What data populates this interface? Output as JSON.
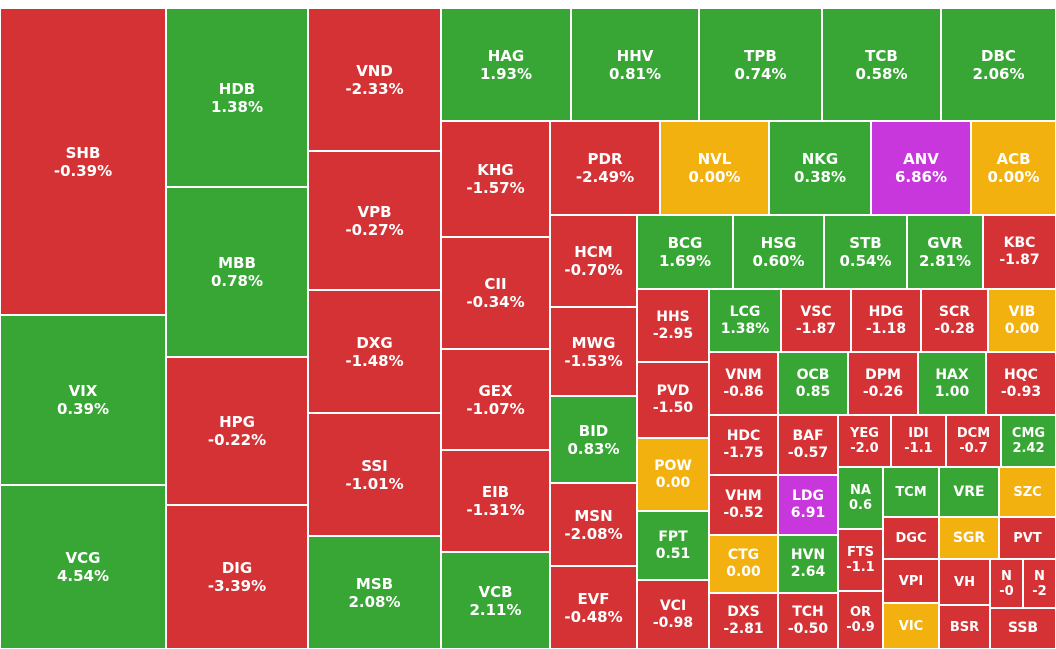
{
  "chart_data": {
    "type": "treemap",
    "colors": {
      "down": "#d43235",
      "up": "#38a635",
      "ref": "#f3b10f",
      "ceiling": "#c737dc"
    },
    "tiles": [
      {
        "symbol": "SHB",
        "change": "-0.39%",
        "status": "down"
      },
      {
        "symbol": "VIX",
        "change": "0.39%",
        "status": "up"
      },
      {
        "symbol": "VCG",
        "change": "4.54%",
        "status": "up"
      },
      {
        "symbol": "HDB",
        "change": "1.38%",
        "status": "up"
      },
      {
        "symbol": "MBB",
        "change": "0.78%",
        "status": "up"
      },
      {
        "symbol": "HPG",
        "change": "-0.22%",
        "status": "down"
      },
      {
        "symbol": "DIG",
        "change": "-3.39%",
        "status": "down"
      },
      {
        "symbol": "VND",
        "change": "-2.33%",
        "status": "down"
      },
      {
        "symbol": "VPB",
        "change": "-0.27%",
        "status": "down"
      },
      {
        "symbol": "DXG",
        "change": "-1.48%",
        "status": "down"
      },
      {
        "symbol": "SSI",
        "change": "-1.01%",
        "status": "down"
      },
      {
        "symbol": "MSB",
        "change": "2.08%",
        "status": "up"
      },
      {
        "symbol": "HAG",
        "change": "1.93%",
        "status": "up"
      },
      {
        "symbol": "HHV",
        "change": "0.81%",
        "status": "up"
      },
      {
        "symbol": "TPB",
        "change": "0.74%",
        "status": "up"
      },
      {
        "symbol": "TCB",
        "change": "0.58%",
        "status": "up"
      },
      {
        "symbol": "DBC",
        "change": "2.06%",
        "status": "up"
      },
      {
        "symbol": "KHG",
        "change": "-1.57%",
        "status": "down"
      },
      {
        "symbol": "CII",
        "change": "-0.34%",
        "status": "down"
      },
      {
        "symbol": "GEX",
        "change": "-1.07%",
        "status": "down"
      },
      {
        "symbol": "EIB",
        "change": "-1.31%",
        "status": "down"
      },
      {
        "symbol": "VCB",
        "change": "2.11%",
        "status": "up"
      },
      {
        "symbol": "PDR",
        "change": "-2.49%",
        "status": "down"
      },
      {
        "symbol": "NVL",
        "change": "0.00%",
        "status": "ref"
      },
      {
        "symbol": "NKG",
        "change": "0.38%",
        "status": "up"
      },
      {
        "symbol": "ANV",
        "change": "6.86%",
        "status": "ceiling"
      },
      {
        "symbol": "ACB",
        "change": "0.00%",
        "status": "ref"
      },
      {
        "symbol": "HCM",
        "change": "-0.70%",
        "status": "down"
      },
      {
        "symbol": "MWG",
        "change": "-1.53%",
        "status": "down"
      },
      {
        "symbol": "BID",
        "change": "0.83%",
        "status": "up"
      },
      {
        "symbol": "MSN",
        "change": "-2.08%",
        "status": "down"
      },
      {
        "symbol": "EVF",
        "change": "-0.48%",
        "status": "down"
      },
      {
        "symbol": "BCG",
        "change": "1.69%",
        "status": "up"
      },
      {
        "symbol": "HSG",
        "change": "0.60%",
        "status": "up"
      },
      {
        "symbol": "STB",
        "change": "0.54%",
        "status": "up"
      },
      {
        "symbol": "GVR",
        "change": "2.81%",
        "status": "up"
      },
      {
        "symbol": "KBC",
        "change": "-1.87",
        "status": "down"
      },
      {
        "symbol": "HHS",
        "change": "-2.95",
        "status": "down"
      },
      {
        "symbol": "PVD",
        "change": "-1.50",
        "status": "down"
      },
      {
        "symbol": "POW",
        "change": "0.00",
        "status": "ref"
      },
      {
        "symbol": "FPT",
        "change": "0.51",
        "status": "up"
      },
      {
        "symbol": "VCI",
        "change": "-0.98",
        "status": "down"
      },
      {
        "symbol": "LCG",
        "change": "1.38%",
        "status": "up"
      },
      {
        "symbol": "VSC",
        "change": "-1.87",
        "status": "down"
      },
      {
        "symbol": "HDG",
        "change": "-1.18",
        "status": "down"
      },
      {
        "symbol": "SCR",
        "change": "-0.28",
        "status": "down"
      },
      {
        "symbol": "VIB",
        "change": "0.00",
        "status": "ref"
      },
      {
        "symbol": "VNM",
        "change": "-0.86",
        "status": "down"
      },
      {
        "symbol": "OCB",
        "change": "0.85",
        "status": "up"
      },
      {
        "symbol": "DPM",
        "change": "-0.26",
        "status": "down"
      },
      {
        "symbol": "HAX",
        "change": "1.00",
        "status": "up"
      },
      {
        "symbol": "HQC",
        "change": "-0.93",
        "status": "down"
      },
      {
        "symbol": "HDC",
        "change": "-1.75",
        "status": "down"
      },
      {
        "symbol": "BAF",
        "change": "-0.57",
        "status": "down"
      },
      {
        "symbol": "YEG",
        "change": "-2.0",
        "status": "down"
      },
      {
        "symbol": "IDI",
        "change": "-1.1",
        "status": "down"
      },
      {
        "symbol": "DCM",
        "change": "-0.7",
        "status": "down"
      },
      {
        "symbol": "CMG",
        "change": "2.42",
        "status": "up"
      },
      {
        "symbol": "VHM",
        "change": "-0.52",
        "status": "down"
      },
      {
        "symbol": "LDG",
        "change": "6.91",
        "status": "ceiling"
      },
      {
        "symbol": "NA",
        "change": "0.6",
        "status": "up"
      },
      {
        "symbol": "TCM",
        "change": "",
        "status": "up"
      },
      {
        "symbol": "VRE",
        "change": "",
        "status": "up"
      },
      {
        "symbol": "SZC",
        "change": "",
        "status": "ref"
      },
      {
        "symbol": "DGC",
        "change": "",
        "status": "down"
      },
      {
        "symbol": "SGR",
        "change": "",
        "status": "ref"
      },
      {
        "symbol": "PVT",
        "change": "",
        "status": "down"
      },
      {
        "symbol": "CTG",
        "change": "0.00",
        "status": "ref"
      },
      {
        "symbol": "HVN",
        "change": "2.64",
        "status": "up"
      },
      {
        "symbol": "FTS",
        "change": "-1.1",
        "status": "down"
      },
      {
        "symbol": "VPI",
        "change": "",
        "status": "down"
      },
      {
        "symbol": "VH",
        "change": "",
        "status": "down"
      },
      {
        "symbol": "N",
        "change": "-0",
        "status": "down"
      },
      {
        "symbol": "N",
        "change": "-2",
        "status": "down"
      },
      {
        "symbol": "DXS",
        "change": "-2.81",
        "status": "down"
      },
      {
        "symbol": "TCH",
        "change": "-0.50",
        "status": "down"
      },
      {
        "symbol": "OR",
        "change": "-0.9",
        "status": "down"
      },
      {
        "symbol": "VIC",
        "change": "",
        "status": "ref"
      },
      {
        "symbol": "BSR",
        "change": "",
        "status": "down"
      },
      {
        "symbol": "SSB",
        "change": "",
        "status": "down"
      }
    ]
  }
}
